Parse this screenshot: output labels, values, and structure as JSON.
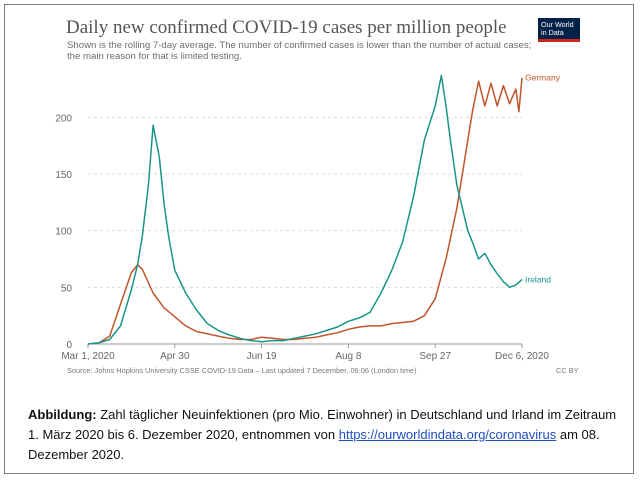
{
  "chart_data": {
    "type": "line",
    "title": "Daily new confirmed COVID-19 cases per million people",
    "subtitle": "Shown is the rolling 7-day average. The number of confirmed cases is lower than the number of actual cases; the main reason for that is limited testing.",
    "x_tick_labels": [
      "Mar 1, 2020",
      "Apr 30",
      "Jun 19",
      "Aug 8",
      "Sep 27",
      "Dec 6, 2020"
    ],
    "y_ticks": [
      0,
      50,
      100,
      150,
      200
    ],
    "ylim": [
      0,
      240
    ],
    "grid": true,
    "series": [
      {
        "name": "Germany",
        "color": "#c1552b",
        "x": [
          "2020-03-01",
          "2020-03-08",
          "2020-03-15",
          "2020-03-22",
          "2020-03-29",
          "2020-04-02",
          "2020-04-05",
          "2020-04-12",
          "2020-04-19",
          "2020-04-26",
          "2020-05-03",
          "2020-05-10",
          "2020-05-17",
          "2020-05-24",
          "2020-05-31",
          "2020-06-07",
          "2020-06-14",
          "2020-06-21",
          "2020-06-28",
          "2020-07-05",
          "2020-07-12",
          "2020-07-19",
          "2020-07-26",
          "2020-08-02",
          "2020-08-09",
          "2020-08-16",
          "2020-08-23",
          "2020-08-30",
          "2020-09-06",
          "2020-09-13",
          "2020-09-20",
          "2020-09-27",
          "2020-10-04",
          "2020-10-11",
          "2020-10-18",
          "2020-10-25",
          "2020-11-01",
          "2020-11-04",
          "2020-11-08",
          "2020-11-12",
          "2020-11-16",
          "2020-11-20",
          "2020-11-24",
          "2020-11-28",
          "2020-12-02",
          "2020-12-04",
          "2020-12-06"
        ],
        "values": [
          0,
          1,
          7,
          35,
          63,
          70,
          66,
          45,
          32,
          24,
          16,
          11,
          9,
          7,
          5,
          4,
          4,
          6,
          5,
          4,
          4,
          5,
          6,
          8,
          10,
          13,
          15,
          16,
          16,
          18,
          19,
          20,
          25,
          40,
          75,
          120,
          180,
          205,
          232,
          210,
          230,
          210,
          228,
          212,
          225,
          205,
          235
        ]
      },
      {
        "name": "Ireland",
        "color": "#18958a",
        "x": [
          "2020-03-01",
          "2020-03-08",
          "2020-03-15",
          "2020-03-22",
          "2020-03-29",
          "2020-04-02",
          "2020-04-05",
          "2020-04-09",
          "2020-04-12",
          "2020-04-16",
          "2020-04-19",
          "2020-04-22",
          "2020-04-26",
          "2020-05-03",
          "2020-05-10",
          "2020-05-17",
          "2020-05-24",
          "2020-05-31",
          "2020-06-07",
          "2020-06-14",
          "2020-06-21",
          "2020-06-28",
          "2020-07-05",
          "2020-07-12",
          "2020-07-19",
          "2020-07-26",
          "2020-08-02",
          "2020-08-09",
          "2020-08-16",
          "2020-08-23",
          "2020-08-30",
          "2020-09-06",
          "2020-09-13",
          "2020-09-20",
          "2020-09-27",
          "2020-10-04",
          "2020-10-11",
          "2020-10-15",
          "2020-10-18",
          "2020-10-21",
          "2020-10-25",
          "2020-11-01",
          "2020-11-04",
          "2020-11-08",
          "2020-11-12",
          "2020-11-16",
          "2020-11-20",
          "2020-11-24",
          "2020-11-28",
          "2020-12-02",
          "2020-12-06"
        ],
        "values": [
          0,
          1,
          4,
          16,
          48,
          70,
          95,
          140,
          193,
          165,
          125,
          95,
          65,
          45,
          30,
          18,
          12,
          8,
          5,
          3,
          2,
          3,
          3,
          5,
          7,
          9,
          12,
          15,
          20,
          23,
          28,
          45,
          65,
          90,
          130,
          180,
          210,
          237,
          210,
          178,
          140,
          100,
          90,
          75,
          80,
          70,
          62,
          55,
          50,
          52,
          57
        ]
      }
    ]
  },
  "header": {
    "logo_line1": "Our World",
    "logo_line2": "in Data"
  },
  "footer": {
    "source": "Source: Johns Hopkins University CSSE COVID-19 Data – Last updated 7 December, 06:06 (London time)",
    "license": "CC BY"
  },
  "caption": {
    "label": "Abbildung:",
    "text_before": " Zahl täglicher Neuinfektionen (pro Mio. Einwohner) in Deutschland und Irland im Zeitraum 1. März 2020 bis 6. Dezember 2020, entnommen von ",
    "link": "https://ourworldindata.org/coronavirus",
    "text_after": " am 08. Dezember 2020."
  }
}
